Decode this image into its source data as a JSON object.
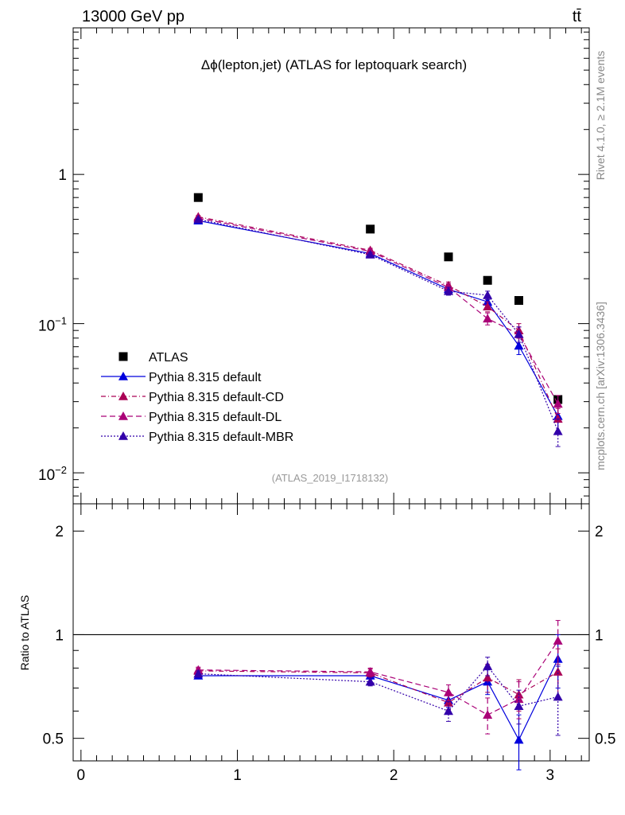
{
  "header": {
    "left": "13000 GeV pp",
    "right": "tt̄",
    "side_top": "Rivet 4.1.0, ≥ 2.1M events",
    "side_bottom": "mcplots.cern.ch [arXiv:1306.3436]"
  },
  "colors": {
    "data": "#000000",
    "default": "#0000dd",
    "cd": "#aa0055",
    "dl": "#aa0077",
    "mbr": "#3300aa"
  },
  "chart_data": [
    {
      "type": "scatter",
      "panel": "main",
      "title": "Δϕ(lepton,jet) (ATLAS for leptoquark search)",
      "analysis_id": "(ATLAS_2019_I1718132)",
      "yscale": "log",
      "xlim": [
        -0.05,
        3.25
      ],
      "ylim": [
        0.0062,
        9.6
      ],
      "ytick_labels": [
        {
          "value": 1,
          "text": "1"
        },
        {
          "value": 0.1,
          "base": "10",
          "exp": "−1"
        },
        {
          "value": 0.01,
          "base": "10",
          "exp": "−2"
        }
      ],
      "legend_position": "center-left",
      "x": [
        0.75,
        1.85,
        2.35,
        2.6,
        2.8,
        3.05
      ],
      "series": [
        {
          "name": "ATLAS",
          "key": "data",
          "marker": "square",
          "style": "none",
          "values": [
            0.7,
            0.43,
            0.28,
            0.195,
            0.143,
            0.031
          ]
        },
        {
          "name": "Pythia 8.315 default",
          "key": "default",
          "marker": "triangle",
          "style": "solid",
          "values": [
            0.49,
            0.295,
            0.17,
            0.14,
            0.071,
            0.024
          ],
          "errors": [
            0.01,
            0.01,
            0.01,
            0.01,
            0.009,
            0.005
          ]
        },
        {
          "name": "Pythia 8.315 default-CD",
          "key": "cd",
          "marker": "triangle",
          "style": "dashdot",
          "values": [
            0.52,
            0.31,
            0.18,
            0.13,
            0.09,
            0.023
          ],
          "errors": [
            0.01,
            0.01,
            0.01,
            0.01,
            0.01,
            0.004
          ]
        },
        {
          "name": "Pythia 8.315 default-DL",
          "key": "dl",
          "marker": "triangle",
          "style": "dashed",
          "values": [
            0.51,
            0.305,
            0.175,
            0.108,
            0.085,
            0.029
          ],
          "errors": [
            0.01,
            0.01,
            0.01,
            0.01,
            0.01,
            0.004
          ]
        },
        {
          "name": "Pythia 8.315 default-MBR",
          "key": "mbr",
          "marker": "triangle",
          "style": "dotted",
          "values": [
            0.5,
            0.29,
            0.165,
            0.155,
            0.085,
            0.019
          ],
          "errors": [
            0.01,
            0.01,
            0.01,
            0.01,
            0.01,
            0.004
          ]
        }
      ]
    },
    {
      "type": "scatter",
      "panel": "ratio",
      "ylabel": "Ratio to ATLAS",
      "yscale": "log",
      "xlim": [
        -0.05,
        3.25
      ],
      "ylim": [
        0.43,
        2.4
      ],
      "ytick_labels": [
        {
          "value": 2,
          "text": "2"
        },
        {
          "value": 1,
          "text": "1"
        },
        {
          "value": 0.5,
          "text": "0.5"
        }
      ],
      "xtick_labels": [
        {
          "value": 0,
          "text": "0"
        },
        {
          "value": 1,
          "text": "1"
        },
        {
          "value": 2,
          "text": "2"
        },
        {
          "value": 3,
          "text": "3"
        }
      ],
      "reference_line": 1,
      "x": [
        0.75,
        1.85,
        2.35,
        2.6,
        2.8,
        3.05
      ],
      "series": [
        {
          "name": "Pythia 8.315 default",
          "key": "default",
          "style": "solid",
          "values": [
            0.76,
            0.76,
            0.645,
            0.73,
            0.495,
            0.85
          ],
          "errors": [
            0.015,
            0.015,
            0.03,
            0.06,
            0.09,
            0.15
          ]
        },
        {
          "name": "Pythia 8.315 default-CD",
          "key": "cd",
          "style": "dashdot",
          "values": [
            0.785,
            0.775,
            0.635,
            0.75,
            0.67,
            0.78
          ],
          "errors": [
            0.015,
            0.02,
            0.03,
            0.07,
            0.07,
            0.13
          ]
        },
        {
          "name": "Pythia 8.315 default-DL",
          "key": "dl",
          "style": "dashed",
          "values": [
            0.79,
            0.78,
            0.68,
            0.585,
            0.65,
            0.96
          ],
          "errors": [
            0.015,
            0.02,
            0.035,
            0.07,
            0.08,
            0.14
          ]
        },
        {
          "name": "Pythia 8.315 default-MBR",
          "key": "mbr",
          "style": "dotted",
          "values": [
            0.77,
            0.73,
            0.6,
            0.81,
            0.62,
            0.66
          ],
          "errors": [
            0.015,
            0.02,
            0.04,
            0.05,
            0.07,
            0.15
          ]
        }
      ]
    }
  ]
}
